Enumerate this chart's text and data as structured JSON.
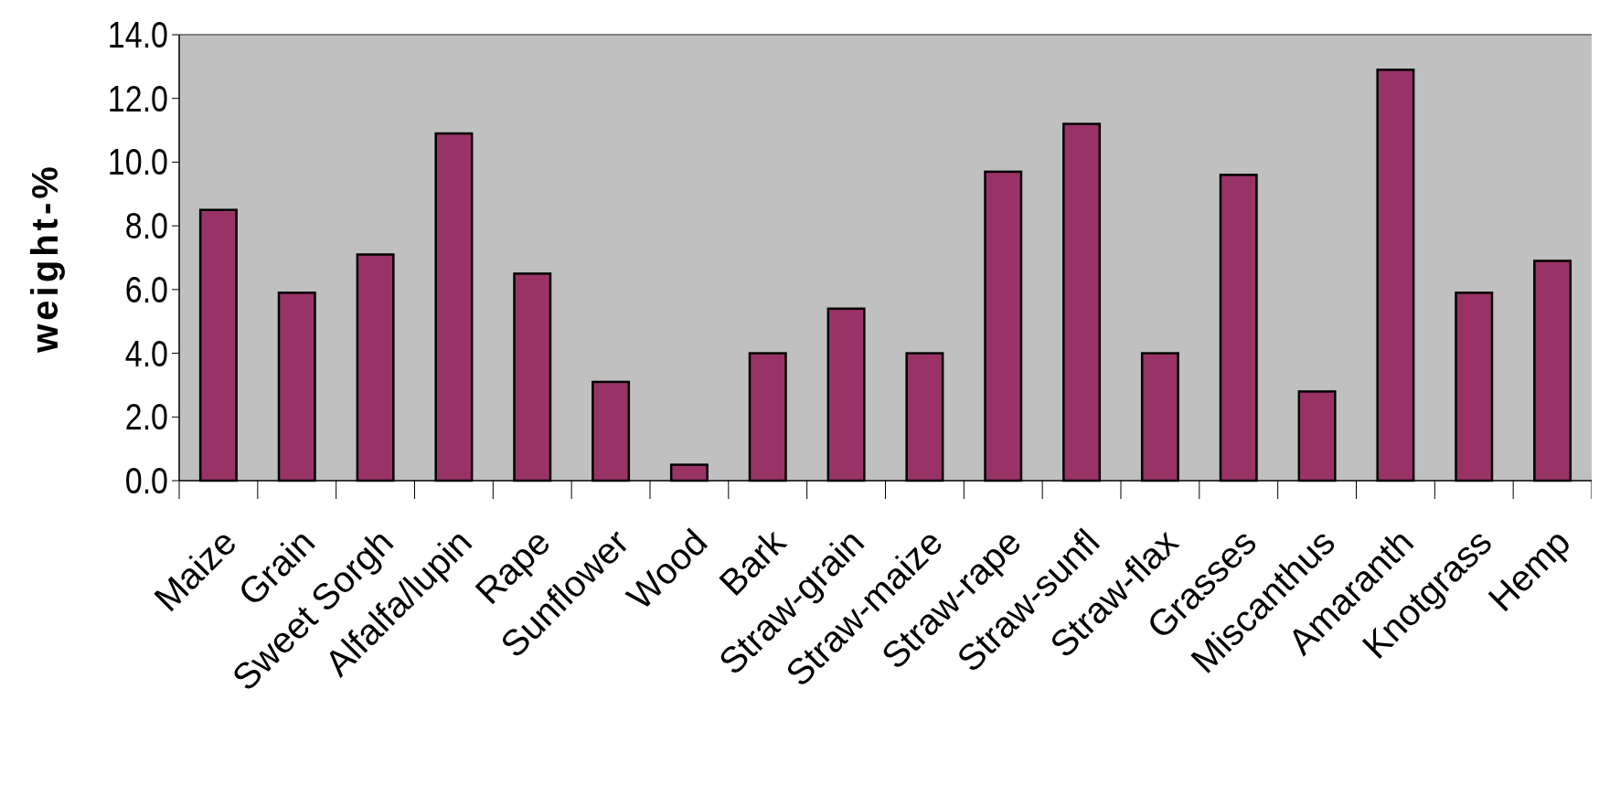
{
  "chart_data": {
    "type": "bar",
    "ylabel": "weight-%",
    "categories": [
      "Maize",
      "Grain",
      "Sweet Sorgh",
      "Alfalfa/lupin",
      "Rape",
      "Sunflower",
      "Wood",
      "Bark",
      "Straw-grain",
      "Straw-maize",
      "Straw-rape",
      "Straw-sunfl",
      "Straw-flax",
      "Grasses",
      "Miscanthus",
      "Amaranth",
      "Knotgrass",
      "Hemp"
    ],
    "values": [
      8.5,
      5.9,
      7.1,
      10.9,
      6.5,
      3.1,
      0.5,
      4.0,
      5.4,
      4.0,
      9.7,
      11.2,
      4.0,
      9.6,
      2.8,
      12.9,
      5.9,
      6.9
    ],
    "color": "#993366",
    "ylim": [
      0,
      14
    ],
    "yticks": [
      {
        "value": 0,
        "label": "0.0"
      },
      {
        "value": 2,
        "label": "2.0"
      },
      {
        "value": 4,
        "label": "4.0"
      },
      {
        "value": 6,
        "label": "6.0"
      },
      {
        "value": 8,
        "label": "8.0"
      },
      {
        "value": 10,
        "label": "10.0"
      },
      {
        "value": 12,
        "label": "12.0"
      },
      {
        "value": 14,
        "label": "14.0"
      }
    ],
    "grid": false
  }
}
